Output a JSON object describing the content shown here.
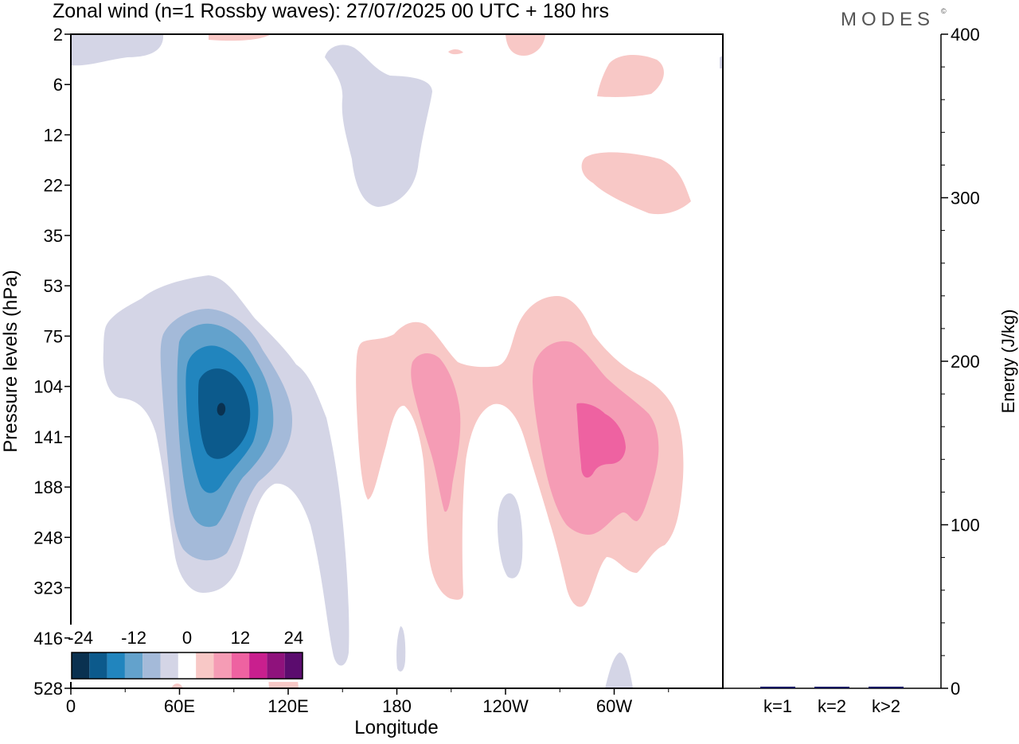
{
  "chart_data": [
    {
      "type": "heatmap",
      "title": "Zonal wind (n=1 Rossby waves):  27/07/2025  00 UTC  + 180 hrs",
      "brand": "MODES",
      "brand_mark": "©",
      "xlabel": "Longitude",
      "ylabel": "Pressure levels (hPa)",
      "x_ticks": [
        "0",
        "60E",
        "120E",
        "180",
        "120W",
        "60W"
      ],
      "x_tick_values": [
        0,
        60,
        120,
        180,
        240,
        300
      ],
      "xlim": [
        0,
        360
      ],
      "y_ticks": [
        "2",
        "6",
        "12",
        "22",
        "35",
        "53",
        "75",
        "104",
        "141",
        "188",
        "248",
        "323",
        "416",
        "528"
      ],
      "colorbar": {
        "labels": [
          "-24",
          "-12",
          "0",
          "12",
          "24"
        ],
        "colors": [
          "#0a3150",
          "#0c5a8c",
          "#2185be",
          "#63a2cc",
          "#a4bad9",
          "#d4d5e6",
          "#ffffff",
          "#f8c8c6",
          "#f59cb5",
          "#ee62a1",
          "#c91f8e",
          "#8f127c",
          "#5b0c6e"
        ]
      },
      "features": [
        {
          "name": "negative-anomaly",
          "center_lon": 83,
          "center_level": "120",
          "min_value": -24
        },
        {
          "name": "positive-anomaly-west",
          "center_lon": 200,
          "center_level": "141",
          "max_value": 12
        },
        {
          "name": "positive-anomaly-east",
          "center_lon": 282,
          "center_level": "141",
          "max_value": 18
        }
      ]
    },
    {
      "type": "bar",
      "ylabel": "Energy (J/kg)",
      "categories": [
        "k=1",
        "k=2",
        "k>2"
      ],
      "values": [
        1,
        0.5,
        1
      ],
      "ylim": [
        0,
        400
      ],
      "y_ticks": [
        "0",
        "100",
        "200",
        "300",
        "400"
      ],
      "bar_color": "#0b1560"
    }
  ]
}
